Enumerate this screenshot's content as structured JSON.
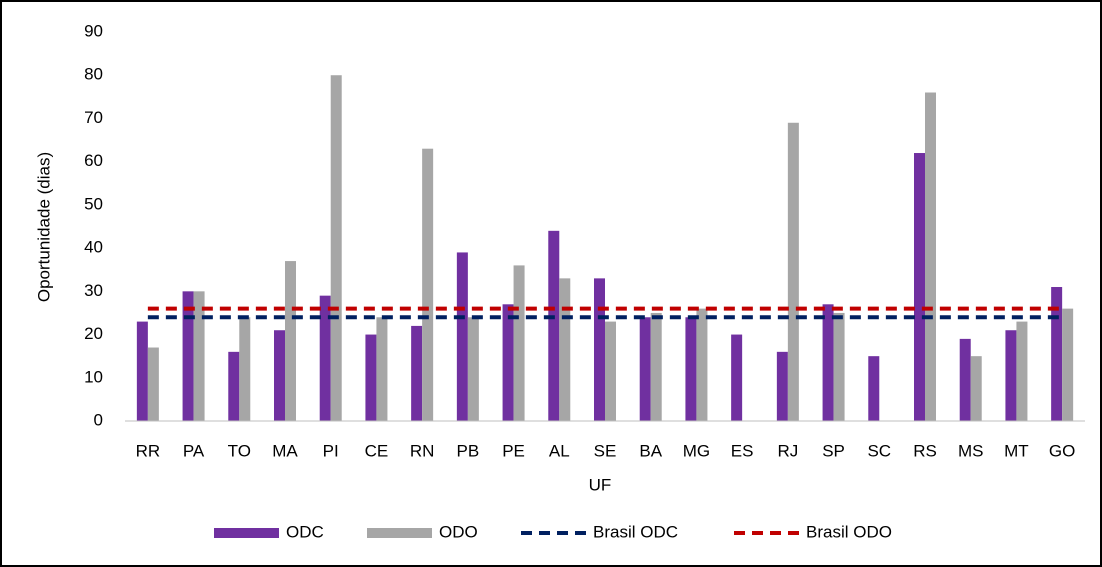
{
  "chart_data": {
    "type": "bar",
    "x_label": "UF",
    "y_label": "Oportunidade (dias)",
    "categories": [
      "RR",
      "PA",
      "TO",
      "MA",
      "PI",
      "CE",
      "RN",
      "PB",
      "PE",
      "AL",
      "SE",
      "BA",
      "MG",
      "ES",
      "RJ",
      "SP",
      "SC",
      "RS",
      "MS",
      "MT",
      "GO"
    ],
    "series": [
      {
        "name": "ODC",
        "type": "bar",
        "color": "#7030a0",
        "values": [
          23,
          30,
          16,
          21,
          29,
          20,
          22,
          39,
          27,
          44,
          33,
          24,
          24,
          20,
          16,
          27,
          15,
          62,
          19,
          21,
          31
        ]
      },
      {
        "name": "ODO",
        "type": "bar",
        "color": "#a6a6a6",
        "values": [
          17,
          30,
          24,
          37,
          80,
          24,
          63,
          24,
          36,
          33,
          23,
          25,
          26,
          null,
          69,
          25,
          null,
          76,
          15,
          23,
          26
        ]
      },
      {
        "name": "Brasil ODC",
        "type": "line",
        "dashed": true,
        "color": "#002060",
        "values": [
          24,
          24,
          24,
          24,
          24,
          24,
          24,
          24,
          24,
          24,
          24,
          24,
          24,
          24,
          24,
          24,
          24,
          24,
          24,
          24,
          24
        ]
      },
      {
        "name": "Brasil ODO",
        "type": "line",
        "dashed": true,
        "color": "#c00000",
        "values": [
          26,
          26,
          26,
          26,
          26,
          26,
          26,
          26,
          26,
          26,
          26,
          26,
          26,
          26,
          26,
          26,
          26,
          26,
          26,
          26,
          26
        ]
      }
    ],
    "ylim": [
      0,
      90
    ],
    "yticks": [
      0,
      10,
      20,
      30,
      40,
      50,
      60,
      70,
      80,
      90
    ],
    "grid": false,
    "legend": "bottom"
  }
}
